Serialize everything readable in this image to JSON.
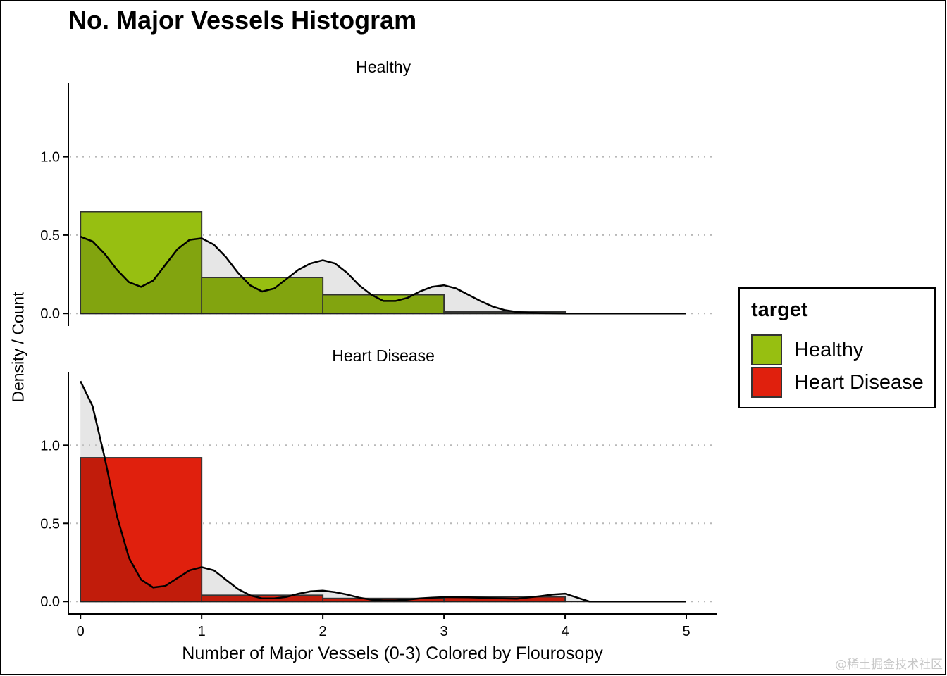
{
  "chart_data": {
    "type": "bar",
    "title": "No. Major Vessels Histogram",
    "xlabel": "Number of Major Vessels (0-3) Colored by Flourosopy",
    "ylabel": "Density / Count",
    "xlim": [
      -0.1,
      5.25
    ],
    "ylim": [
      -0.08,
      1.47
    ],
    "x_ticks": [
      "0",
      "1",
      "2",
      "3",
      "4",
      "5"
    ],
    "y_ticks": [
      "0.0",
      "0.5",
      "1.0"
    ],
    "grid": "horizontal dotted",
    "legend": {
      "title": "target",
      "position": "right",
      "entries": [
        {
          "label": "Healthy",
          "color": "#97bf11"
        },
        {
          "label": "Heart Disease",
          "color": "#e0200d"
        }
      ]
    },
    "panels": [
      {
        "label": "Healthy",
        "color": "#97bf11",
        "histogram": {
          "bins": [
            [
              0,
              1
            ],
            [
              1,
              2
            ],
            [
              2,
              3
            ],
            [
              3,
              4
            ]
          ],
          "values": [
            0.65,
            0.23,
            0.12,
            0.01
          ]
        },
        "density": {
          "x": [
            0,
            0.1,
            0.2,
            0.3,
            0.4,
            0.5,
            0.6,
            0.7,
            0.8,
            0.9,
            1.0,
            1.1,
            1.2,
            1.3,
            1.4,
            1.5,
            1.6,
            1.7,
            1.8,
            1.9,
            2.0,
            2.1,
            2.2,
            2.3,
            2.4,
            2.5,
            2.6,
            2.7,
            2.8,
            2.9,
            3.0,
            3.1,
            3.2,
            3.3,
            3.4,
            3.5,
            3.6,
            3.7,
            3.8,
            3.9,
            4.0,
            4.2,
            4.4,
            4.6,
            4.8,
            5.0
          ],
          "y": [
            0.49,
            0.46,
            0.38,
            0.28,
            0.2,
            0.17,
            0.21,
            0.31,
            0.41,
            0.47,
            0.48,
            0.44,
            0.36,
            0.26,
            0.18,
            0.14,
            0.16,
            0.22,
            0.28,
            0.32,
            0.34,
            0.32,
            0.26,
            0.18,
            0.12,
            0.08,
            0.08,
            0.1,
            0.14,
            0.17,
            0.18,
            0.16,
            0.12,
            0.08,
            0.045,
            0.022,
            0.01,
            0.005,
            0.002,
            0.001,
            0.0,
            0.0,
            0.0,
            0.0,
            0.0,
            0.0
          ]
        }
      },
      {
        "label": "Heart Disease",
        "color": "#e0200d",
        "histogram": {
          "bins": [
            [
              0,
              1
            ],
            [
              1,
              2
            ],
            [
              2,
              3
            ],
            [
              3,
              4
            ]
          ],
          "values": [
            0.92,
            0.04,
            0.02,
            0.03
          ]
        },
        "density": {
          "x": [
            0,
            0.1,
            0.2,
            0.3,
            0.4,
            0.5,
            0.6,
            0.7,
            0.8,
            0.9,
            1.0,
            1.1,
            1.2,
            1.3,
            1.4,
            1.5,
            1.6,
            1.7,
            1.8,
            1.9,
            2.0,
            2.1,
            2.2,
            2.3,
            2.4,
            2.5,
            2.6,
            2.7,
            2.8,
            2.9,
            3.0,
            3.2,
            3.4,
            3.6,
            3.8,
            3.9,
            4.0,
            4.2,
            4.5,
            5.0
          ],
          "y": [
            1.41,
            1.25,
            0.92,
            0.55,
            0.28,
            0.14,
            0.09,
            0.1,
            0.15,
            0.2,
            0.22,
            0.2,
            0.14,
            0.08,
            0.04,
            0.02,
            0.02,
            0.03,
            0.05,
            0.065,
            0.07,
            0.06,
            0.045,
            0.025,
            0.012,
            0.008,
            0.008,
            0.012,
            0.02,
            0.025,
            0.028,
            0.027,
            0.022,
            0.018,
            0.035,
            0.045,
            0.05,
            0.0,
            0.0,
            0.0
          ]
        }
      }
    ]
  },
  "watermark": "@稀土掘金技术社区"
}
